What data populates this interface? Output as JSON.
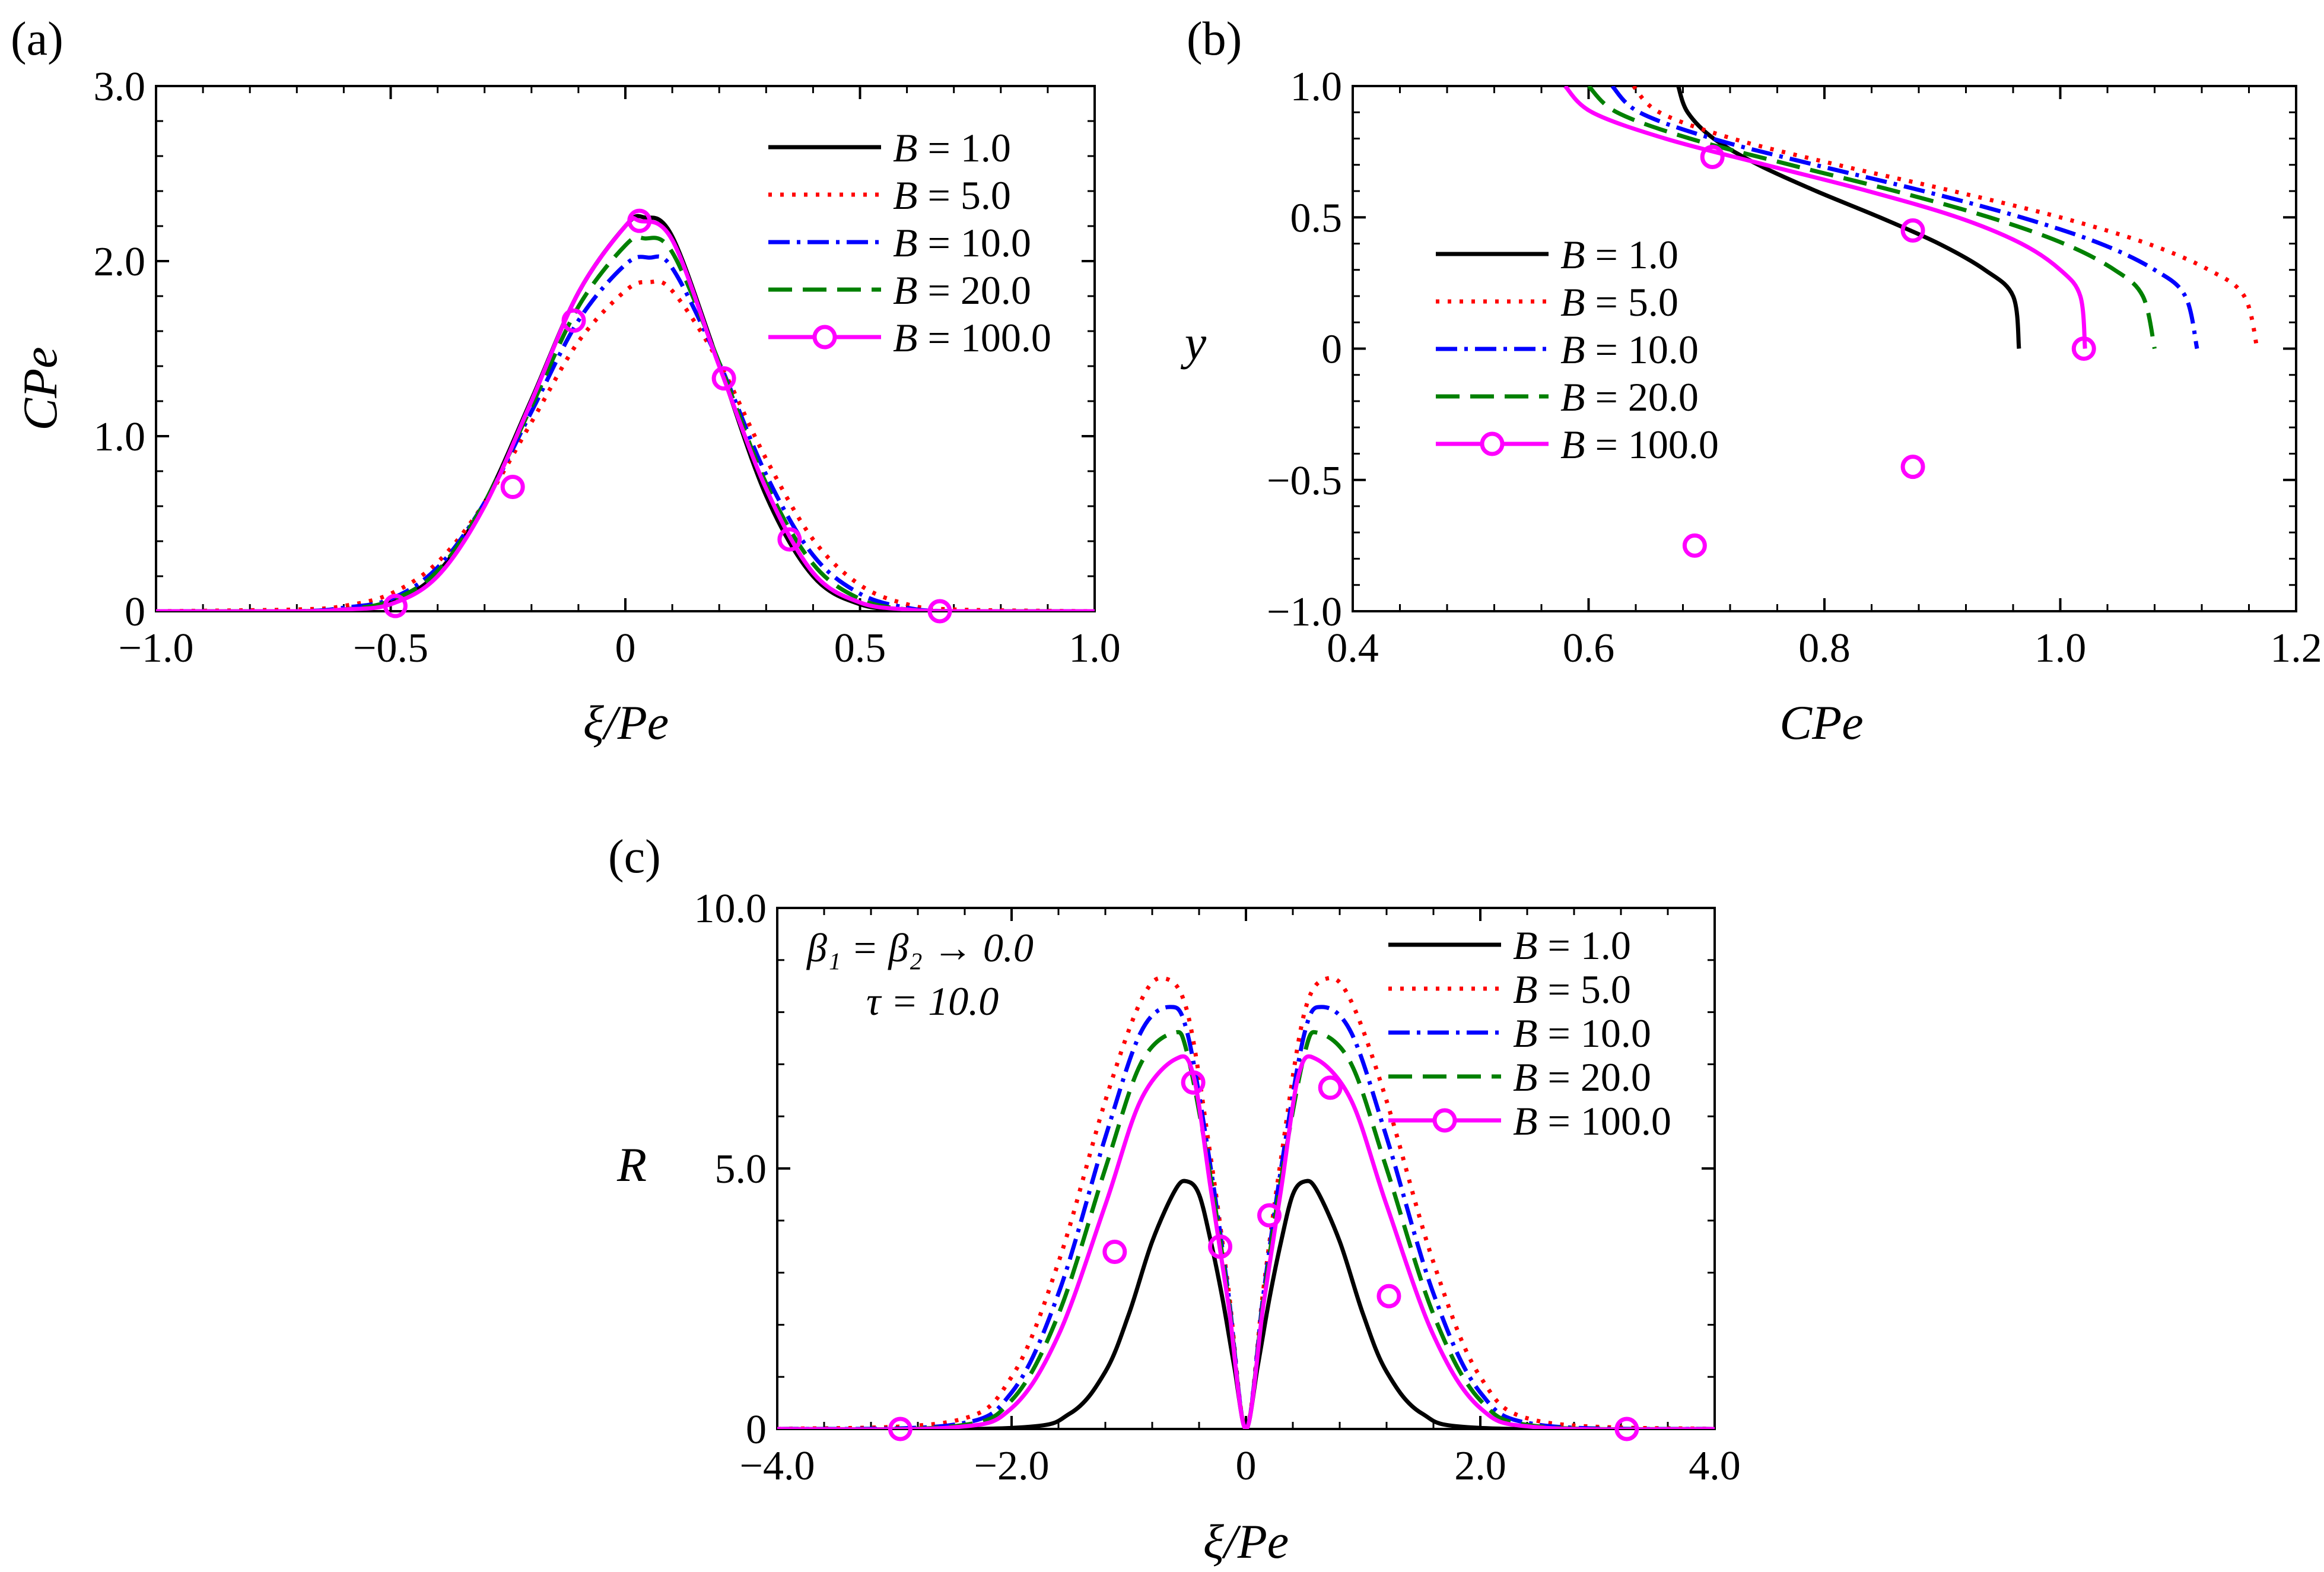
{
  "figure": {
    "legend_entries": [
      "B = 1.0",
      "B = 5.0",
      "B = 10.0",
      "B = 20.0",
      "B = 100.0"
    ],
    "legend_var": "B",
    "legend_vals": [
      "1.0",
      "5.0",
      "10.0",
      "20.0",
      "100.0"
    ],
    "series_styles": [
      {
        "color": "#000000",
        "dash": "solid",
        "marker": "none"
      },
      {
        "color": "#ff0000",
        "dash": "dotted",
        "marker": "none"
      },
      {
        "color": "#0000ff",
        "dash": "dashdot",
        "marker": "none"
      },
      {
        "color": "#008000",
        "dash": "dashed",
        "marker": "none"
      },
      {
        "color": "#ff00ff",
        "dash": "solid",
        "marker": "circle"
      }
    ]
  },
  "chart_data": [
    {
      "type": "line",
      "panel": "(a)",
      "xlabel": "ξ/Pe",
      "ylabel": "CPe",
      "xlim": [
        -1.0,
        1.0
      ],
      "ylim": [
        0,
        3.0
      ],
      "xticks": [
        "−1.0",
        "−0.5",
        "0",
        "0.5",
        "1.0"
      ],
      "yticks": [
        "0",
        "1.0",
        "2.0",
        "3.0"
      ],
      "legend_position": "top-right",
      "series": [
        {
          "name": "B = 1.0",
          "x": [
            -1.0,
            -0.7,
            -0.6,
            -0.5,
            -0.4,
            -0.3,
            -0.2,
            -0.1,
            0.0,
            0.04,
            0.1,
            0.2,
            0.3,
            0.4,
            0.5,
            0.6,
            0.7,
            1.0
          ],
          "y": [
            0,
            0.0,
            0.01,
            0.05,
            0.22,
            0.62,
            1.21,
            1.82,
            2.2,
            2.25,
            2.14,
            1.41,
            0.66,
            0.2,
            0.04,
            0.01,
            0.0,
            0
          ]
        },
        {
          "name": "B = 5.0",
          "x": [
            -1.0,
            -0.7,
            -0.6,
            -0.5,
            -0.4,
            -0.3,
            -0.2,
            -0.1,
            0.0,
            0.05,
            0.1,
            0.2,
            0.3,
            0.4,
            0.5,
            0.6,
            0.7,
            1.0
          ],
          "y": [
            0,
            0.01,
            0.03,
            0.1,
            0.28,
            0.62,
            1.08,
            1.54,
            1.83,
            1.88,
            1.83,
            1.42,
            0.87,
            0.41,
            0.15,
            0.04,
            0.01,
            0
          ]
        },
        {
          "name": "B = 10.0",
          "x": [
            -1.0,
            -0.7,
            -0.6,
            -0.5,
            -0.4,
            -0.3,
            -0.2,
            -0.1,
            0.0,
            0.05,
            0.1,
            0.2,
            0.3,
            0.4,
            0.5,
            0.6,
            0.7,
            1.0
          ],
          "y": [
            0,
            0.0,
            0.02,
            0.07,
            0.25,
            0.62,
            1.14,
            1.66,
            1.98,
            2.02,
            1.96,
            1.42,
            0.78,
            0.32,
            0.1,
            0.02,
            0.0,
            0
          ]
        },
        {
          "name": "B = 20.0",
          "x": [
            -1.0,
            -0.7,
            -0.6,
            -0.5,
            -0.4,
            -0.3,
            -0.2,
            -0.1,
            0.0,
            0.04,
            0.1,
            0.2,
            0.3,
            0.4,
            0.5,
            0.6,
            0.7,
            1.0
          ],
          "y": [
            0,
            0.0,
            0.01,
            0.06,
            0.23,
            0.62,
            1.17,
            1.74,
            2.09,
            2.13,
            2.05,
            1.42,
            0.73,
            0.27,
            0.07,
            0.01,
            0.0,
            0
          ]
        },
        {
          "name": "B = 100.0",
          "x": [
            -1.0,
            -0.7,
            -0.6,
            -0.5,
            -0.4,
            -0.3,
            -0.2,
            -0.1,
            0.0,
            0.03,
            0.1,
            0.2,
            0.3,
            0.4,
            0.5,
            0.6,
            0.7,
            1.0
          ],
          "y": [
            0,
            0.0,
            0.01,
            0.04,
            0.2,
            0.6,
            1.2,
            1.82,
            2.2,
            2.23,
            2.12,
            1.4,
            0.7,
            0.22,
            0.05,
            0.01,
            0.0,
            0
          ],
          "markers_x": [
            -0.49,
            -0.24,
            -0.11,
            0.03,
            0.21,
            0.35,
            0.67
          ],
          "markers_y": [
            0.03,
            0.71,
            1.66,
            2.23,
            1.33,
            0.41,
            0.0
          ]
        }
      ]
    },
    {
      "type": "line",
      "panel": "(b)",
      "xlabel": "CPe",
      "ylabel": "y",
      "xlim": [
        0.4,
        1.2
      ],
      "ylim": [
        -1.0,
        1.0
      ],
      "xticks": [
        "0.4",
        "0.6",
        "0.8",
        "1.0",
        "1.2"
      ],
      "yticks": [
        "−1.0",
        "−0.5",
        "0",
        "0.5",
        "1.0"
      ],
      "legend_position": "center-left",
      "series": [
        {
          "name": "B = 1.0",
          "x": [
            0.676,
            0.684,
            0.706,
            0.744,
            0.793,
            0.847,
            0.897,
            0.936,
            0.96,
            0.965
          ],
          "y": [
            1.0,
            0.9,
            0.8,
            0.7,
            0.6,
            0.5,
            0.4,
            0.3,
            0.2,
            0.0
          ]
        },
        {
          "name": "B = 5.0",
          "x": [
            0.638,
            0.66,
            0.722,
            0.811,
            0.909,
            1.0,
            1.074,
            1.126,
            1.156,
            1.167
          ],
          "y": [
            1.0,
            0.9,
            0.8,
            0.7,
            0.6,
            0.5,
            0.4,
            0.3,
            0.2,
            0.0
          ]
        },
        {
          "name": "B = 10.0",
          "x": [
            0.62,
            0.643,
            0.705,
            0.792,
            0.884,
            0.967,
            1.034,
            1.08,
            1.106,
            1.116
          ],
          "y": [
            1.0,
            0.9,
            0.8,
            0.7,
            0.6,
            0.5,
            0.4,
            0.3,
            0.2,
            0.0
          ]
        },
        {
          "name": "B = 20.0",
          "x": [
            0.6,
            0.624,
            0.686,
            0.771,
            0.86,
            0.94,
            1.003,
            1.046,
            1.07,
            1.08
          ],
          "y": [
            1.0,
            0.9,
            0.8,
            0.7,
            0.6,
            0.5,
            0.4,
            0.3,
            0.2,
            0.0
          ]
        },
        {
          "name": "B = 100.0",
          "x": [
            0.58,
            0.603,
            0.665,
            0.75,
            0.837,
            0.913,
            0.967,
            1.0,
            1.017,
            1.021
          ],
          "y": [
            1.0,
            0.9,
            0.8,
            0.7,
            0.6,
            0.5,
            0.4,
            0.3,
            0.2,
            0.0
          ],
          "markers_x": [
            0.705,
            0.875,
            1.02,
            0.875,
            0.69
          ],
          "markers_y": [
            0.73,
            0.45,
            0.0,
            -0.45,
            -0.75
          ]
        }
      ]
    },
    {
      "type": "line",
      "panel": "(c)",
      "xlabel": "ξ/Pe",
      "ylabel": "R",
      "xlim": [
        -4.0,
        4.0
      ],
      "ylim": [
        0,
        10.0
      ],
      "xticks": [
        "−4.0",
        "−2.0",
        "0",
        "2.0",
        "4.0"
      ],
      "yticks": [
        "0",
        "5.0",
        "10.0"
      ],
      "annotations": [
        "β₁ = β₂ → 0.0",
        "τ = 10.0"
      ],
      "legend_position": "top-right",
      "series": [
        {
          "name": "B = 1.0",
          "x": [
            -4.0,
            -2.0,
            -1.5,
            -1.2,
            -1.0,
            -0.8,
            -0.6,
            -0.5,
            -0.4,
            -0.3,
            -0.2,
            -0.1,
            0.0,
            0.1,
            0.2,
            0.3,
            0.4,
            0.5,
            0.6,
            0.8,
            1.0,
            1.2,
            1.5,
            2.0,
            4.0
          ],
          "y": [
            0,
            0.02,
            0.3,
            1.1,
            2.2,
            3.6,
            4.6,
            4.75,
            4.5,
            3.6,
            2.5,
            1.2,
            0,
            1.2,
            2.5,
            3.6,
            4.5,
            4.75,
            4.6,
            3.6,
            2.2,
            1.1,
            0.3,
            0.02,
            0
          ]
        },
        {
          "name": "B = 5.0",
          "x": [
            -4.0,
            -2.5,
            -2.0,
            -1.6,
            -1.2,
            -0.9,
            -0.7,
            -0.5,
            -0.3,
            -0.15,
            0.0,
            0.15,
            0.3,
            0.5,
            0.7,
            0.9,
            1.2,
            1.6,
            2.0,
            2.5,
            4.0
          ],
          "y": [
            0,
            0.15,
            1.0,
            3.2,
            6.3,
            8.2,
            8.65,
            8.0,
            5.2,
            2.7,
            0,
            2.7,
            5.2,
            8.0,
            8.65,
            8.2,
            6.3,
            3.2,
            1.0,
            0.15,
            0
          ]
        },
        {
          "name": "B = 10.0",
          "x": [
            -4.0,
            -2.5,
            -2.0,
            -1.6,
            -1.2,
            -0.9,
            -0.65,
            -0.5,
            -0.3,
            -0.15,
            0.0,
            0.15,
            0.3,
            0.5,
            0.65,
            0.9,
            1.2,
            1.6,
            2.0,
            2.5,
            4.0
          ],
          "y": [
            0,
            0.08,
            0.7,
            2.6,
            5.6,
            7.6,
            8.1,
            7.6,
            5.0,
            2.6,
            0,
            2.6,
            5.0,
            7.6,
            8.1,
            7.6,
            5.6,
            2.6,
            0.7,
            0.08,
            0
          ]
        },
        {
          "name": "B = 20.0",
          "x": [
            -4.0,
            -2.5,
            -2.0,
            -1.6,
            -1.2,
            -0.9,
            -0.62,
            -0.5,
            -0.3,
            -0.15,
            0.0,
            0.15,
            0.3,
            0.5,
            0.62,
            0.9,
            1.2,
            1.6,
            2.0,
            2.5,
            4.0
          ],
          "y": [
            0,
            0.05,
            0.55,
            2.2,
            5.0,
            7.0,
            7.6,
            7.2,
            4.8,
            2.5,
            0,
            2.5,
            4.8,
            7.2,
            7.6,
            7.0,
            5.0,
            2.2,
            0.55,
            0.05,
            0
          ]
        },
        {
          "name": "B = 100.0",
          "x": [
            -4.0,
            -2.5,
            -2.0,
            -1.6,
            -1.2,
            -0.9,
            -0.6,
            -0.45,
            -0.3,
            -0.15,
            0.0,
            0.15,
            0.3,
            0.45,
            0.6,
            0.9,
            1.2,
            1.6,
            2.0,
            2.5,
            4.0
          ],
          "y": [
            0,
            0.03,
            0.4,
            1.8,
            4.3,
            6.3,
            7.1,
            6.8,
            4.6,
            2.4,
            0,
            2.4,
            4.6,
            6.8,
            7.1,
            6.3,
            4.3,
            1.8,
            0.4,
            0.03,
            0
          ],
          "markers_x": [
            -2.95,
            -1.12,
            -0.45,
            -0.22,
            0.2,
            0.72,
            1.22,
            3.25
          ],
          "markers_y": [
            0.0,
            3.4,
            6.65,
            3.5,
            4.1,
            6.55,
            2.55,
            0.0
          ]
        }
      ]
    }
  ]
}
